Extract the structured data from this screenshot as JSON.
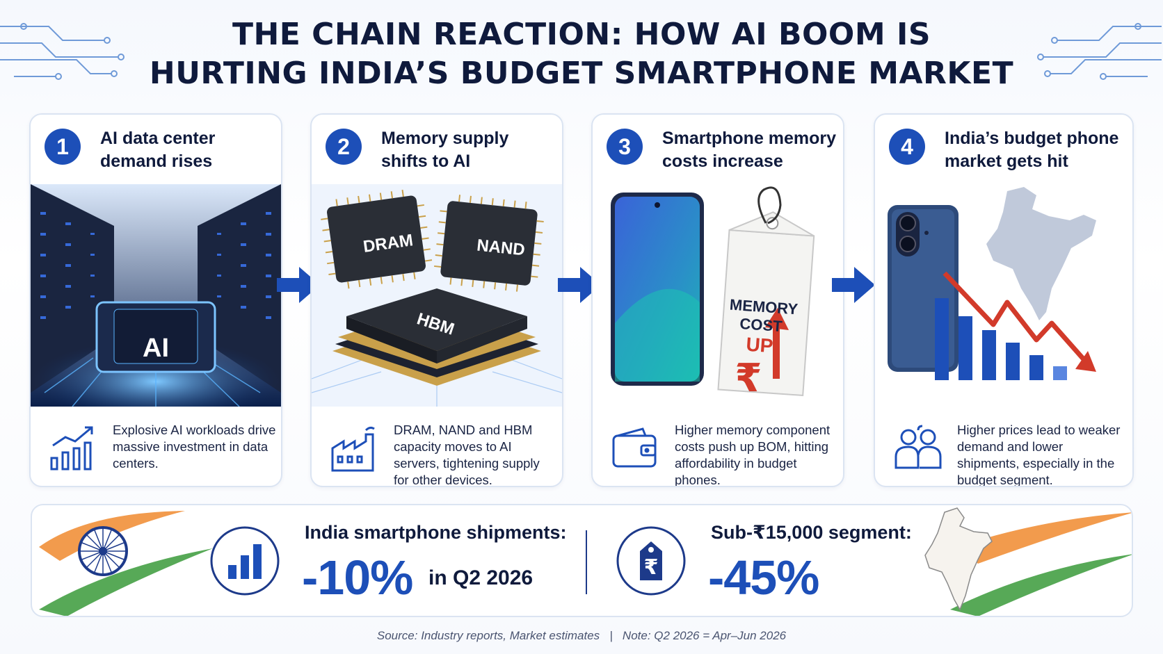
{
  "title": {
    "line1": "THE CHAIN REACTION: HOW AI BOOM IS",
    "line2": "HURTING INDIA’S BUDGET SMARTPHONE MARKET"
  },
  "steps": [
    {
      "num": "1",
      "heading": "AI data center demand rises",
      "image_label": "AI",
      "icon": "growth-chart-icon",
      "description": "Explosive AI workloads drive massive investment in data centers."
    },
    {
      "num": "2",
      "heading": "Memory supply shifts to AI",
      "chips": [
        "DRAM",
        "NAND",
        "HBM"
      ],
      "icon": "factory-icon",
      "description": "DRAM, NAND and HBM capacity moves to AI servers, tightening supply for other devices."
    },
    {
      "num": "3",
      "heading": "Smartphone memory costs increase",
      "tag": {
        "line1": "MEMORY",
        "line2": "COST",
        "line3": "UP",
        "symbol": "₹"
      },
      "icon": "wallet-icon",
      "description": "Higher memory component costs push up BOM, hitting affordability in budget phones."
    },
    {
      "num": "4",
      "heading": "India’s budget phone market gets hit",
      "icon": "people-icon",
      "description": "Higher prices lead to weaker demand and lower shipments, especially in the budget segment."
    }
  ],
  "stats": {
    "shipments_label": "India smartphone shipments:",
    "shipments_value": "-10%",
    "shipments_period": "in Q2 2026",
    "segment_label": "Sub-₹15,000 segment:",
    "segment_value": "-45%",
    "rupee": "₹"
  },
  "source": "Source: Industry reports, Market estimates   |   Note: Q2 2026 = Apr–Jun 2026",
  "colors": {
    "navy": "#0f1a3c",
    "accent": "#1d4fb8",
    "red": "#d23a2a",
    "saffron": "#f08a2e",
    "green": "#3a9a3a"
  }
}
